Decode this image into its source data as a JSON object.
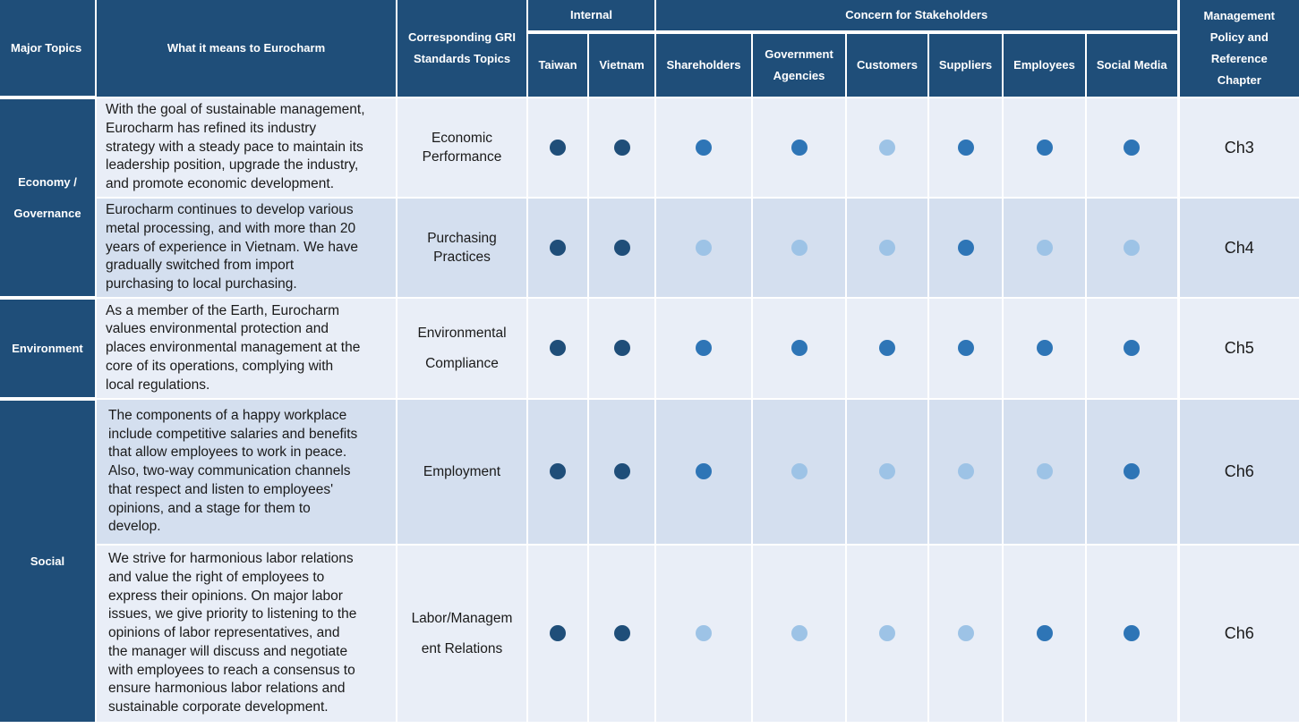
{
  "header": {
    "major_topics": "Major Topics",
    "what_it_means": "What it means to Eurocharm",
    "gri_line1": "Corresponding GRI",
    "gri_line2": "Standards Topics",
    "internal": "Internal",
    "concern": "Concern for Stakeholders",
    "mgmt_line1": "Management",
    "mgmt_line2": "Policy and",
    "mgmt_line3": "Reference",
    "mgmt_line4": "Chapter",
    "columns": [
      "Taiwan",
      "Vietnam",
      "Shareholders",
      "Government Agencies",
      "Customers",
      "Suppliers",
      "Employees",
      "Social Media"
    ],
    "gov_line1": "Government",
    "gov_line2": "Agencies"
  },
  "topics": {
    "economy_line1": "Economy /",
    "economy_line2": "Governance",
    "environment": "Environment",
    "social": "Social"
  },
  "rows": [
    {
      "topic": "Economy / Governance",
      "description_lines": [
        "With the goal of sustainable management,",
        "Eurocharm has refined its industry",
        "strategy with a steady pace to maintain its",
        "leadership position, upgrade the industry,",
        "and promote economic development."
      ],
      "gri_lines": [
        "Economic",
        "Performance"
      ],
      "levels": [
        "dark",
        "dark",
        "mid",
        "mid",
        "light",
        "mid",
        "mid",
        "mid"
      ],
      "chapter": "Ch3"
    },
    {
      "topic": "Economy / Governance",
      "description_lines": [
        "Eurocharm continues to develop various",
        "metal processing, and with more than 20",
        "years of experience in Vietnam. We have",
        "gradually switched from import",
        "purchasing to local purchasing."
      ],
      "gri_lines": [
        "Purchasing",
        "Practices"
      ],
      "levels": [
        "dark",
        "dark",
        "light",
        "light",
        "light",
        "mid",
        "light",
        "light"
      ],
      "chapter": "Ch4"
    },
    {
      "topic": "Environment",
      "description_lines": [
        "As a member of the Earth, Eurocharm",
        "values environmental protection and",
        "places environmental management at the",
        "core of its operations, complying with",
        "local regulations."
      ],
      "gri_lines": [
        "Environmental",
        "Compliance"
      ],
      "levels": [
        "dark",
        "dark",
        "mid",
        "mid",
        "mid",
        "mid",
        "mid",
        "mid"
      ],
      "chapter": "Ch5"
    },
    {
      "topic": "Social",
      "description_lines": [
        "The components of a happy workplace",
        "include competitive salaries and benefits",
        "that allow employees to work in peace.",
        "Also, two-way communication channels",
        "that respect and listen to employees'",
        "opinions, and a stage for them to",
        "develop."
      ],
      "gri_lines": [
        "Employment"
      ],
      "levels": [
        "dark",
        "dark",
        "mid",
        "light",
        "light",
        "light",
        "light",
        "mid"
      ],
      "chapter": "Ch6"
    },
    {
      "topic": "Social",
      "description_lines": [
        "We strive for harmonious labor relations",
        "and value the right of employees to",
        "express their opinions. On major labor",
        "issues, we give priority to listening to the",
        "opinions of labor representatives, and",
        "the manager will discuss and negotiate",
        "with employees to reach a consensus to",
        "ensure harmonious labor relations and",
        "sustainable corporate development."
      ],
      "gri_lines": [
        "Labor/Managem",
        "ent Relations"
      ],
      "levels": [
        "dark",
        "dark",
        "light",
        "light",
        "light",
        "light",
        "mid",
        "mid"
      ],
      "chapter": "Ch6"
    }
  ],
  "colors": {
    "header_bg": "#1f4e79",
    "row_light_bg": "#e9eef7",
    "row_mid_bg": "#d4dfef",
    "dot_dark": "#1f4e79",
    "dot_mid": "#2e75b6",
    "dot_light": "#9dc3e6"
  }
}
